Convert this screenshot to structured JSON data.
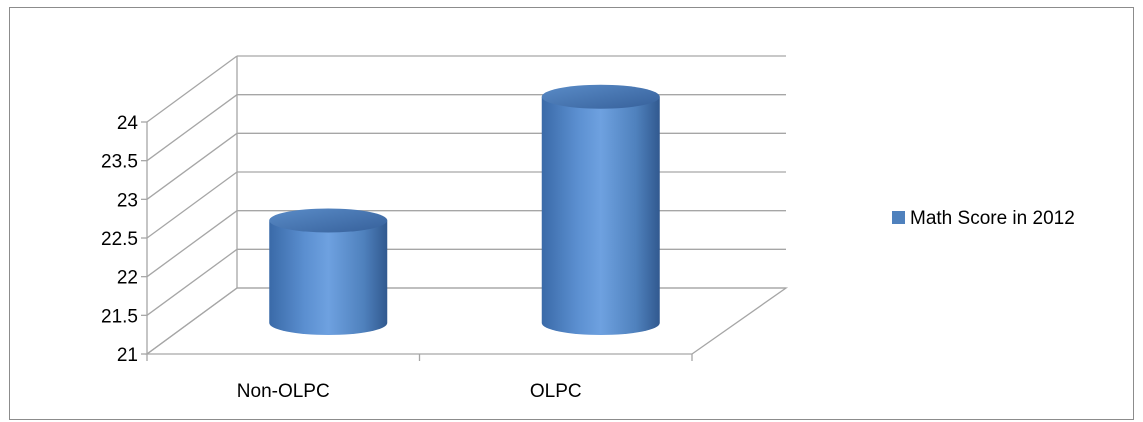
{
  "chart_data": {
    "type": "bar",
    "style": "3d-cylinder",
    "categories": [
      "Non-OLPC",
      "OLPC"
    ],
    "series": [
      {
        "name": "Math Score in 2012",
        "values": [
          22.3,
          23.9
        ],
        "color": "#4f81bd"
      }
    ],
    "ylim": [
      21,
      24
    ],
    "yticks": [
      "21",
      "21.5",
      "22",
      "22.5",
      "23",
      "23.5",
      "24"
    ],
    "grid": true,
    "legend_position": "right"
  }
}
